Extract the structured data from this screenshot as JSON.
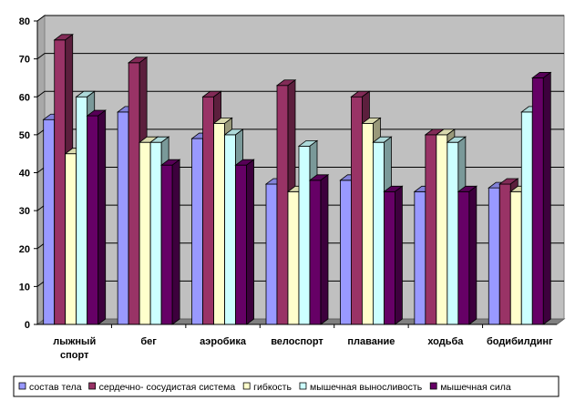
{
  "chart_data": {
    "type": "bar",
    "categories": [
      [
        "лыжный",
        "спорт"
      ],
      [
        "бег"
      ],
      [
        "аэробика"
      ],
      [
        "велоспорт"
      ],
      [
        "плавание"
      ],
      [
        "ходьба"
      ],
      [
        "бодибилдинг"
      ]
    ],
    "series": [
      {
        "name": "состав тела",
        "color": "#9999ff",
        "values": [
          54,
          56,
          49,
          37,
          38,
          35,
          36
        ]
      },
      {
        "name": "сердечно- сосудистая система",
        "color": "#993366",
        "values": [
          75,
          69,
          60,
          63,
          60,
          50,
          37
        ]
      },
      {
        "name": "гибкость",
        "color": "#ffffcc",
        "values": [
          45,
          48,
          53,
          35,
          53,
          50,
          35
        ]
      },
      {
        "name": "мышечная выносливость",
        "color": "#ccffff",
        "values": [
          60,
          48,
          50,
          47,
          48,
          48,
          56
        ]
      },
      {
        "name": "мышечная сила",
        "color": "#660066",
        "values": [
          55,
          42,
          42,
          38,
          35,
          35,
          65
        ]
      }
    ],
    "ylim": [
      0,
      80
    ],
    "yticks": [
      0,
      10,
      20,
      30,
      40,
      50,
      60,
      70,
      80
    ],
    "grid": true,
    "legend_position": "bottom",
    "plot_background": "#c0c0c0"
  }
}
